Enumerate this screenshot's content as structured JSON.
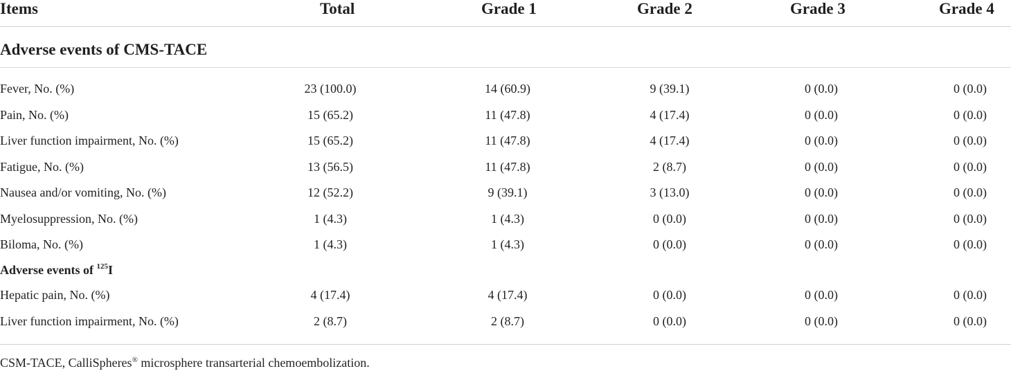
{
  "table": {
    "headers": [
      "Items",
      "Total",
      "Grade 1",
      "Grade 2",
      "Grade 3",
      "Grade 4"
    ],
    "section1_title": "Adverse events of CMS-TACE",
    "section1_rows": [
      [
        "Fever, No. (%)",
        "23 (100.0)",
        "14 (60.9)",
        "9 (39.1)",
        "0 (0.0)",
        "0 (0.0)"
      ],
      [
        "Pain, No. (%)",
        "15 (65.2)",
        "11 (47.8)",
        "4 (17.4)",
        "0 (0.0)",
        "0 (0.0)"
      ],
      [
        "Liver function impairment, No. (%)",
        "15 (65.2)",
        "11 (47.8)",
        "4 (17.4)",
        "0 (0.0)",
        "0 (0.0)"
      ],
      [
        "Fatigue, No. (%)",
        "13 (56.5)",
        "11 (47.8)",
        "2 (8.7)",
        "0 (0.0)",
        "0 (0.0)"
      ],
      [
        "Nausea and/or vomiting, No. (%)",
        "12 (52.2)",
        "9 (39.1)",
        "3 (13.0)",
        "0 (0.0)",
        "0 (0.0)"
      ],
      [
        "Myelosuppression, No. (%)",
        "1 (4.3)",
        "1 (4.3)",
        "0 (0.0)",
        "0 (0.0)",
        "0 (0.0)"
      ],
      [
        "Biloma, No. (%)",
        "1 (4.3)",
        "1 (4.3)",
        "0 (0.0)",
        "0 (0.0)",
        "0 (0.0)"
      ]
    ],
    "section2_title_prefix": "Adverse events of ",
    "section2_title_sup": "125",
    "section2_title_suffix": "I",
    "section2_rows": [
      [
        "Hepatic pain, No. (%)",
        "4 (17.4)",
        "4 (17.4)",
        "0 (0.0)",
        "0 (0.0)",
        "0 (0.0)"
      ],
      [
        "Liver function impairment, No. (%)",
        "2 (8.7)",
        "2 (8.7)",
        "0 (0.0)",
        "0 (0.0)",
        "0 (0.0)"
      ]
    ]
  },
  "footnote": {
    "prefix": "CSM-TACE, CalliSpheres",
    "sup": "®",
    "suffix": " microsphere transarterial chemoembolization."
  }
}
